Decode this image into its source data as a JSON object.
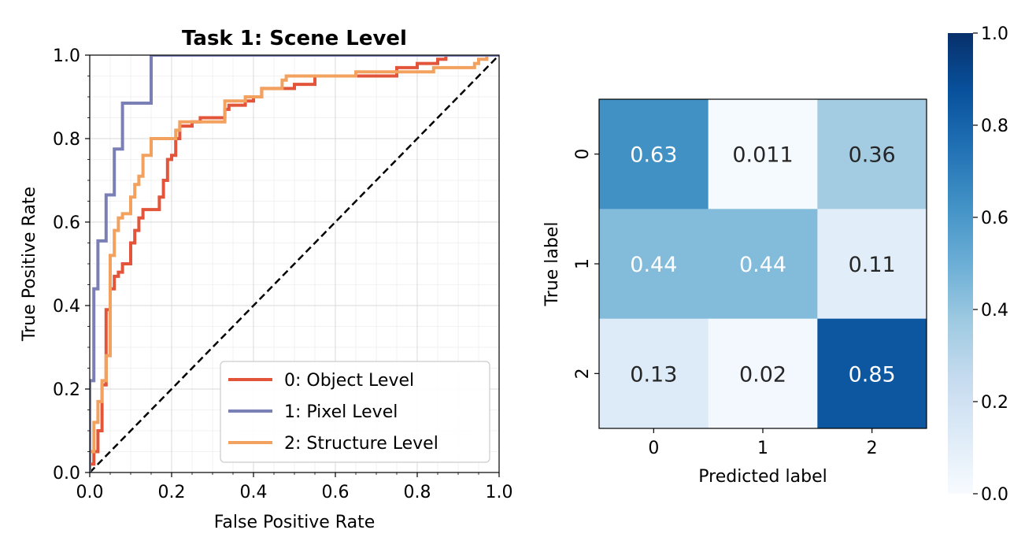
{
  "chart_data": [
    {
      "type": "line",
      "title": "Task 1: Scene Level",
      "xlabel": "False Positive Rate",
      "ylabel": "True Positive Rate",
      "xlim": [
        0.0,
        1.0
      ],
      "ylim": [
        0.0,
        1.0
      ],
      "xticks": [
        "0.0",
        "0.2",
        "0.4",
        "0.6",
        "0.8",
        "1.0"
      ],
      "yticks": [
        "0.0",
        "0.2",
        "0.4",
        "0.6",
        "0.8",
        "1.0"
      ],
      "grid": true,
      "minor_grid": true,
      "legend_position": "lower-right",
      "series": [
        {
          "name": "0: Object Level",
          "color": "#e2553a",
          "points": [
            [
              0,
              0
            ],
            [
              0,
              0.02
            ],
            [
              0.01,
              0.02
            ],
            [
              0.01,
              0.05
            ],
            [
              0.02,
              0.05
            ],
            [
              0.02,
              0.1
            ],
            [
              0.03,
              0.1
            ],
            [
              0.03,
              0.21
            ],
            [
              0.04,
              0.21
            ],
            [
              0.04,
              0.39
            ],
            [
              0.05,
              0.39
            ],
            [
              0.05,
              0.44
            ],
            [
              0.06,
              0.44
            ],
            [
              0.06,
              0.47
            ],
            [
              0.07,
              0.47
            ],
            [
              0.07,
              0.48
            ],
            [
              0.08,
              0.48
            ],
            [
              0.08,
              0.5
            ],
            [
              0.1,
              0.5
            ],
            [
              0.1,
              0.55
            ],
            [
              0.11,
              0.55
            ],
            [
              0.11,
              0.58
            ],
            [
              0.12,
              0.58
            ],
            [
              0.12,
              0.61
            ],
            [
              0.13,
              0.61
            ],
            [
              0.13,
              0.63
            ],
            [
              0.17,
              0.63
            ],
            [
              0.17,
              0.66
            ],
            [
              0.18,
              0.66
            ],
            [
              0.18,
              0.7
            ],
            [
              0.19,
              0.7
            ],
            [
              0.19,
              0.75
            ],
            [
              0.2,
              0.75
            ],
            [
              0.2,
              0.76
            ],
            [
              0.21,
              0.76
            ],
            [
              0.21,
              0.8
            ],
            [
              0.22,
              0.8
            ],
            [
              0.22,
              0.83
            ],
            [
              0.25,
              0.83
            ],
            [
              0.25,
              0.84
            ],
            [
              0.27,
              0.84
            ],
            [
              0.27,
              0.85
            ],
            [
              0.33,
              0.85
            ],
            [
              0.33,
              0.87
            ],
            [
              0.34,
              0.87
            ],
            [
              0.34,
              0.88
            ],
            [
              0.38,
              0.88
            ],
            [
              0.38,
              0.89
            ],
            [
              0.4,
              0.89
            ],
            [
              0.4,
              0.9
            ],
            [
              0.42,
              0.9
            ],
            [
              0.42,
              0.92
            ],
            [
              0.5,
              0.92
            ],
            [
              0.5,
              0.93
            ],
            [
              0.55,
              0.93
            ],
            [
              0.55,
              0.95
            ],
            [
              0.75,
              0.95
            ],
            [
              0.75,
              0.97
            ],
            [
              0.8,
              0.97
            ],
            [
              0.8,
              0.98
            ],
            [
              0.85,
              0.98
            ],
            [
              0.85,
              0.99
            ],
            [
              0.87,
              0.99
            ],
            [
              0.87,
              1.0
            ],
            [
              1.0,
              1.0
            ]
          ]
        },
        {
          "name": "1: Pixel Level",
          "color": "#7a80b5",
          "points": [
            [
              0,
              0
            ],
            [
              0,
              0.22
            ],
            [
              0.01,
              0.22
            ],
            [
              0.01,
              0.44
            ],
            [
              0.02,
              0.44
            ],
            [
              0.02,
              0.555
            ],
            [
              0.04,
              0.555
            ],
            [
              0.04,
              0.665
            ],
            [
              0.06,
              0.665
            ],
            [
              0.06,
              0.775
            ],
            [
              0.08,
              0.775
            ],
            [
              0.08,
              0.885
            ],
            [
              0.15,
              0.885
            ],
            [
              0.15,
              1.0
            ],
            [
              1.0,
              1.0
            ]
          ]
        },
        {
          "name": "2: Structure Level",
          "color": "#f2a15e",
          "points": [
            [
              0,
              0
            ],
            [
              0,
              0.05
            ],
            [
              0.01,
              0.05
            ],
            [
              0.01,
              0.12
            ],
            [
              0.02,
              0.12
            ],
            [
              0.02,
              0.17
            ],
            [
              0.03,
              0.17
            ],
            [
              0.03,
              0.22
            ],
            [
              0.04,
              0.22
            ],
            [
              0.04,
              0.28
            ],
            [
              0.05,
              0.28
            ],
            [
              0.05,
              0.52
            ],
            [
              0.06,
              0.52
            ],
            [
              0.06,
              0.58
            ],
            [
              0.07,
              0.58
            ],
            [
              0.07,
              0.61
            ],
            [
              0.08,
              0.61
            ],
            [
              0.08,
              0.62
            ],
            [
              0.1,
              0.62
            ],
            [
              0.1,
              0.66
            ],
            [
              0.11,
              0.66
            ],
            [
              0.11,
              0.69
            ],
            [
              0.12,
              0.69
            ],
            [
              0.12,
              0.71
            ],
            [
              0.13,
              0.71
            ],
            [
              0.13,
              0.76
            ],
            [
              0.15,
              0.76
            ],
            [
              0.15,
              0.8
            ],
            [
              0.21,
              0.8
            ],
            [
              0.21,
              0.82
            ],
            [
              0.22,
              0.82
            ],
            [
              0.22,
              0.84
            ],
            [
              0.33,
              0.84
            ],
            [
              0.33,
              0.89
            ],
            [
              0.38,
              0.89
            ],
            [
              0.38,
              0.9
            ],
            [
              0.42,
              0.9
            ],
            [
              0.42,
              0.92
            ],
            [
              0.47,
              0.92
            ],
            [
              0.47,
              0.94
            ],
            [
              0.48,
              0.94
            ],
            [
              0.48,
              0.95
            ],
            [
              0.65,
              0.95
            ],
            [
              0.65,
              0.96
            ],
            [
              0.84,
              0.96
            ],
            [
              0.84,
              0.97
            ],
            [
              0.94,
              0.97
            ],
            [
              0.94,
              0.98
            ],
            [
              0.95,
              0.98
            ],
            [
              0.95,
              0.99
            ],
            [
              0.97,
              0.99
            ],
            [
              0.97,
              1.0
            ],
            [
              1.0,
              1.0
            ]
          ]
        },
        {
          "color": "#000000",
          "dashed": true,
          "points": [
            [
              0,
              0
            ],
            [
              1,
              1
            ]
          ]
        }
      ]
    },
    {
      "type": "heatmap",
      "xlabel": "Predicted label",
      "ylabel": "True label",
      "xticks": [
        "0",
        "1",
        "2"
      ],
      "yticks": [
        "0",
        "1",
        "2"
      ],
      "values": [
        [
          0.63,
          0.011,
          0.36
        ],
        [
          0.44,
          0.44,
          0.11
        ],
        [
          0.13,
          0.02,
          0.85
        ]
      ],
      "cell_labels": [
        [
          "0.63",
          "0.011",
          "0.36"
        ],
        [
          "0.44",
          "0.44",
          "0.11"
        ],
        [
          "0.13",
          "0.02",
          "0.85"
        ]
      ],
      "colormap": "Blues",
      "colorbar": {
        "range": [
          0.0,
          1.0
        ],
        "ticks": [
          "0.0",
          "0.2",
          "0.4",
          "0.6",
          "0.8",
          "1.0"
        ]
      }
    }
  ]
}
